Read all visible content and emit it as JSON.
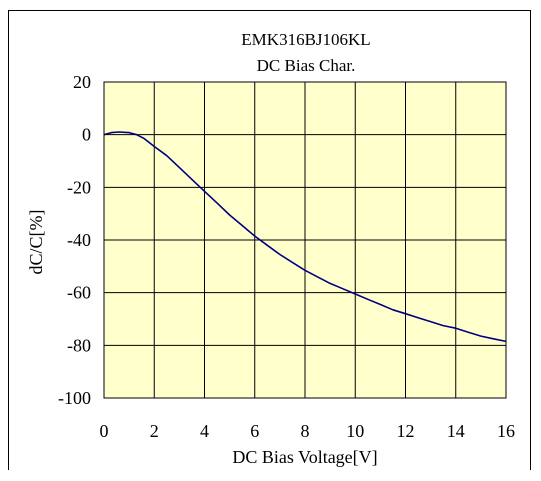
{
  "chart_data": {
    "type": "line",
    "title": "EMK316BJ106KL",
    "subtitle": "DC Bias Char.",
    "xlabel": "DC Bias Voltage[V]",
    "ylabel": "dC/C[%]",
    "xlim": [
      0,
      16
    ],
    "ylim": [
      -100,
      20
    ],
    "xticks": [
      0,
      2,
      4,
      6,
      8,
      10,
      12,
      14,
      16
    ],
    "yticks": [
      20,
      0,
      -20,
      -40,
      -60,
      -80,
      -100
    ],
    "grid": true,
    "plot_background": "#ffffcc",
    "series": [
      {
        "color": "#000080",
        "x": [
          0,
          0.3,
          0.6,
          1.0,
          1.3,
          1.6,
          2.0,
          2.5,
          3.0,
          3.5,
          4.0,
          4.5,
          5.0,
          5.5,
          6.0,
          6.5,
          7.0,
          7.5,
          8.0,
          8.5,
          9.0,
          9.5,
          10.0,
          10.5,
          11.0,
          11.5,
          12.0,
          12.5,
          13.0,
          13.5,
          14.0,
          14.5,
          15.0,
          15.5,
          16.0
        ],
        "y": [
          0,
          0.8,
          1.0,
          0.8,
          0,
          -1.5,
          -4.5,
          -8,
          -12.5,
          -17,
          -21.5,
          -26,
          -30.5,
          -34.5,
          -38.5,
          -42,
          -45.5,
          -48.5,
          -51.5,
          -54,
          -56.5,
          -58.5,
          -60.5,
          -62.5,
          -64.5,
          -66.5,
          -68,
          -69.5,
          -71,
          -72.5,
          -73.5,
          -75,
          -76.5,
          -77.5,
          -78.5
        ]
      }
    ]
  }
}
